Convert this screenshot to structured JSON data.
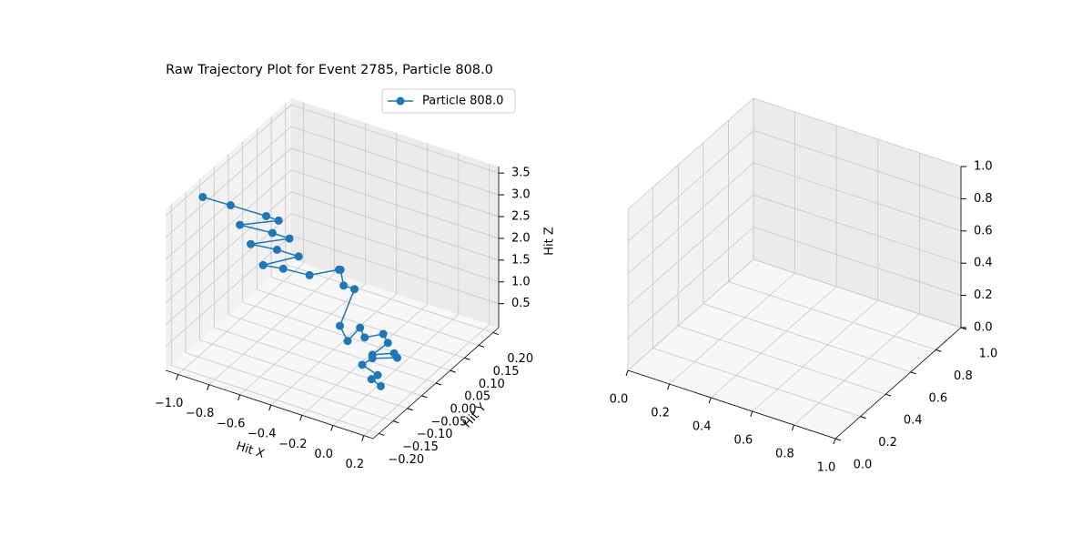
{
  "chart_data": [
    {
      "type": "line3d",
      "title": "Raw Trajectory Plot for Event 2785, Particle 808.0",
      "xlabel": "Hit X",
      "ylabel": "Hit Y",
      "zlabel": "Hit Z",
      "legend": "upper right",
      "grid": true,
      "xlim": [
        -1.08,
        0.26
      ],
      "ylim": [
        -0.22,
        0.22
      ],
      "zlim": [
        -0.05,
        3.65
      ],
      "xticks": [
        {
          "value": -1.0,
          "label": "−1.0"
        },
        {
          "value": -0.8,
          "label": "−0.8"
        },
        {
          "value": -0.6,
          "label": "−0.6"
        },
        {
          "value": -0.4,
          "label": "−0.4"
        },
        {
          "value": -0.2,
          "label": "−0.2"
        },
        {
          "value": 0,
          "label": "0.0"
        },
        0.2
      ],
      "yticks": [
        {
          "value": -0.2,
          "label": "−0.20"
        },
        {
          "value": -0.15,
          "label": "−0.15"
        },
        {
          "value": -0.1,
          "label": "−0.10"
        },
        {
          "value": -0.05,
          "label": "−0.05"
        },
        {
          "value": 0,
          "label": "0.00"
        },
        0.05,
        {
          "value": 0.1,
          "label": "0.10"
        },
        0.15,
        {
          "value": 0.2,
          "label": "0.20"
        }
      ],
      "zticks": [
        0.5,
        {
          "value": 1,
          "label": "1.0"
        },
        1.5,
        {
          "value": 2,
          "label": "2.0"
        },
        2.5,
        {
          "value": 3,
          "label": "3.0"
        },
        3.5
      ],
      "series": [
        {
          "name": "Particle 808.0",
          "color": "#1f77b4",
          "x": [
            -1.08,
            -0.9,
            -0.67,
            -0.59,
            -0.84,
            -0.63,
            -0.52,
            -0.77,
            -0.6,
            -0.46,
            -0.69,
            -0.56,
            -0.39,
            -0.2,
            -0.19,
            -0.17,
            -0.1,
            -0.36,
            -0.31,
            -0.23,
            -0.2,
            -0.08,
            -0.05,
            -0.15,
            -0.01,
            0.01,
            -0.15,
            -0.05,
            0.05,
            0.01,
            0.07
          ],
          "y": [
            -0.09,
            -0.09,
            -0.09,
            -0.09,
            -0.09,
            -0.09,
            -0.09,
            -0.09,
            -0.09,
            -0.09,
            -0.09,
            -0.09,
            -0.09,
            -0.09,
            -0.09,
            -0.09,
            -0.09,
            0,
            0,
            0,
            0,
            0,
            0,
            0,
            0,
            0,
            0,
            -0.09,
            -0.09,
            -0.09,
            -0.09
          ],
          "z": [
            3.18,
            3.2,
            3.22,
            3.21,
            2.82,
            2.88,
            2.88,
            2.46,
            2.53,
            2.54,
            2.07,
            2.14,
            2.19,
            2.54,
            2.55,
            2.21,
            2.21,
            0.54,
            0.25,
            0.65,
            0.46,
            0.68,
            0.51,
            0.12,
            0.32,
            0.24,
            0.04,
            0.53,
            0.41,
            0.27,
            0.18
          ]
        }
      ]
    },
    {
      "type": "line3d",
      "grid": true,
      "xlim": [
        0,
        1
      ],
      "ylim": [
        0,
        1
      ],
      "zlim": [
        0,
        1
      ],
      "xticks": [
        {
          "value": 0,
          "label": "0.0"
        },
        0.2,
        0.4,
        0.6,
        0.8,
        {
          "value": 1,
          "label": "1.0"
        }
      ],
      "yticks": [
        {
          "value": 0,
          "label": "0.0"
        },
        0.2,
        0.4,
        0.6,
        0.8,
        {
          "value": 1,
          "label": "1.0"
        }
      ],
      "zticks": [
        {
          "value": 0,
          "label": "0.0"
        },
        0.2,
        0.4,
        0.6,
        0.8,
        {
          "value": 1,
          "label": "1.0"
        }
      ],
      "series": []
    }
  ]
}
